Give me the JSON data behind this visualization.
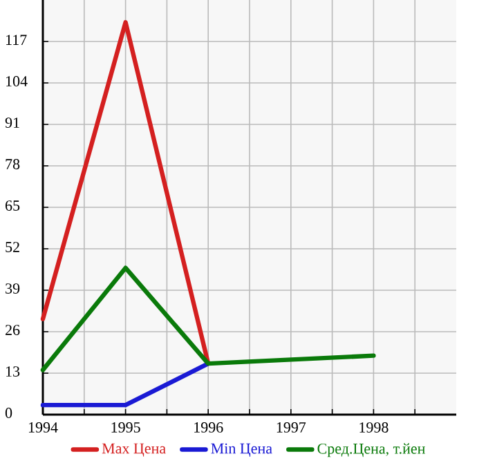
{
  "chart_data": {
    "type": "line",
    "x": [
      1994,
      1995,
      1996
    ],
    "series": [
      {
        "name": "Max Цена",
        "color": "#d42020",
        "values": [
          30,
          123,
          16
        ]
      },
      {
        "name": "Min Цена",
        "color": "#1a1ad4",
        "values": [
          3,
          3,
          16
        ]
      },
      {
        "name": "Сред.Цена, т.йен",
        "color": "#0a7a0a",
        "x": [
          1994,
          1995,
          1996,
          1998
        ],
        "values": [
          14,
          46,
          16,
          18.5
        ]
      }
    ],
    "xlim": [
      1994,
      1999
    ],
    "xticks": [
      1994,
      {
        "value": 1994.5,
        "label": null
      },
      1995,
      {
        "value": 1995.5,
        "label": null
      },
      1996,
      {
        "value": 1996.5,
        "label": null
      },
      1997,
      {
        "value": 1997.5,
        "label": null
      },
      1998,
      {
        "value": 1998.5,
        "label": null
      }
    ],
    "ylim": [
      0,
      130
    ],
    "yticks": [
      0,
      13,
      26,
      39,
      52,
      65,
      78,
      91,
      104,
      117
    ],
    "grid": true,
    "legend": "bottom"
  }
}
